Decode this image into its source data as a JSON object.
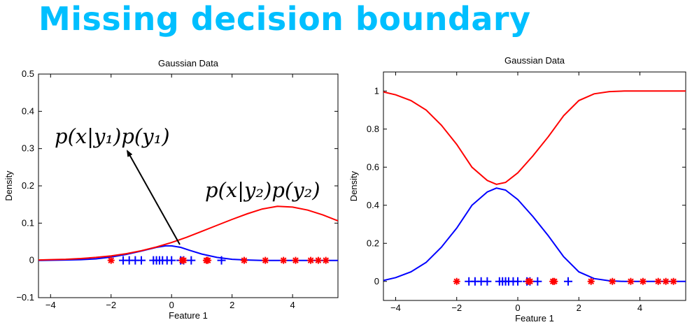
{
  "slide": {
    "title": "Missing decision boundary"
  },
  "annotations": {
    "class1": "p(x|y₁)p(y₁)",
    "class2": "p(x|y₂)p(y₂)"
  },
  "colors": {
    "title": "#00bfff",
    "class1_blue": "#0000ff",
    "class2_red": "#ff0000"
  },
  "chart_data": [
    {
      "type": "line",
      "title": "Gaussian Data",
      "xlabel": "Feature 1",
      "ylabel": "Density",
      "xlim": [
        -4.4,
        5.5
      ],
      "ylim": [
        -0.1,
        0.5
      ],
      "xticks": [
        -4,
        -2,
        0,
        2,
        4
      ],
      "yticks": [
        -0.1,
        0,
        0.1,
        0.2,
        0.3,
        0.4,
        0.5
      ],
      "xtick_labels": [
        "−4",
        "−2",
        "0",
        "2",
        "4"
      ],
      "ytick_labels": [
        "−0.1",
        "0",
        "0.1",
        "0.2",
        "0.3",
        "0.4",
        "0.5"
      ],
      "series": [
        {
          "color": "#0000ff",
          "x": [
            -4.4,
            -3.5,
            -3,
            -2.5,
            -2,
            -1.5,
            -1,
            -0.5,
            -0.2,
            0,
            0.3,
            0.6,
            1,
            1.5,
            2,
            2.5,
            3,
            3.5,
            4,
            4.5,
            5,
            5.5
          ],
          "y": [
            0,
            0.001,
            0.002,
            0.004,
            0.009,
            0.016,
            0.025,
            0.035,
            0.039,
            0.039,
            0.035,
            0.027,
            0.017,
            0.008,
            0.003,
            0.001,
            0,
            0,
            0,
            0,
            0,
            0
          ]
        },
        {
          "color": "#ff0000",
          "x": [
            -4.4,
            -4,
            -3.5,
            -3,
            -2.5,
            -2,
            -1.5,
            -1,
            -0.5,
            0,
            0.5,
            1,
            1.5,
            2,
            2.5,
            3,
            3.5,
            4,
            4.5,
            5,
            5.5
          ],
          "y": [
            0.001,
            0.002,
            0.003,
            0.005,
            0.008,
            0.012,
            0.018,
            0.026,
            0.036,
            0.048,
            0.062,
            0.078,
            0.094,
            0.11,
            0.125,
            0.138,
            0.145,
            0.143,
            0.135,
            0.122,
            0.106
          ]
        }
      ],
      "points": [
        {
          "marker": "plus",
          "color": "#0000ff",
          "y": 0,
          "x": [
            -1.6,
            -1.4,
            -1.2,
            -1.0,
            -0.6,
            -0.5,
            -0.4,
            -0.3,
            -0.15,
            0.0,
            0.3,
            0.4,
            0.65,
            1.65
          ]
        },
        {
          "marker": "star",
          "color": "#ff0000",
          "y": 0,
          "x": [
            -2.0,
            0.35,
            0.4,
            1.15,
            1.2,
            2.4,
            3.1,
            3.7,
            4.1,
            4.6,
            4.85,
            5.1
          ]
        }
      ]
    },
    {
      "type": "line",
      "title": "Gaussian Data",
      "xlabel": "Feature 1",
      "ylabel": "Density",
      "xlim": [
        -4.4,
        5.5
      ],
      "ylim": [
        -0.1,
        1.1
      ],
      "xticks": [
        -4,
        -2,
        0,
        2,
        4
      ],
      "yticks": [
        0,
        0.2,
        0.4,
        0.6,
        0.8,
        1
      ],
      "xtick_labels": [
        "−4",
        "−2",
        "0",
        "2",
        "4"
      ],
      "ytick_labels": [
        "0",
        "0.2",
        "0.4",
        "0.6",
        "0.8",
        "1"
      ],
      "series": [
        {
          "color": "#ff0000",
          "x": [
            -4.4,
            -4,
            -3.5,
            -3,
            -2.5,
            -2,
            -1.5,
            -1,
            -0.7,
            -0.4,
            0,
            0.5,
            1,
            1.5,
            2,
            2.5,
            3,
            3.5,
            4,
            4.5,
            5,
            5.5
          ],
          "y": [
            0.995,
            0.98,
            0.95,
            0.9,
            0.82,
            0.72,
            0.6,
            0.53,
            0.51,
            0.52,
            0.57,
            0.66,
            0.76,
            0.87,
            0.95,
            0.985,
            0.997,
            1.0,
            1.0,
            1.0,
            1.0,
            1.0
          ]
        },
        {
          "color": "#0000ff",
          "x": [
            -4.4,
            -4,
            -3.5,
            -3,
            -2.5,
            -2,
            -1.5,
            -1,
            -0.7,
            -0.4,
            0,
            0.5,
            1,
            1.5,
            2,
            2.5,
            3,
            3.5,
            4,
            4.5,
            5,
            5.5
          ],
          "y": [
            0.005,
            0.02,
            0.05,
            0.1,
            0.18,
            0.28,
            0.4,
            0.47,
            0.49,
            0.48,
            0.43,
            0.34,
            0.24,
            0.13,
            0.05,
            0.015,
            0.003,
            0,
            0,
            0,
            0,
            0
          ]
        }
      ],
      "points": [
        {
          "marker": "plus",
          "color": "#0000ff",
          "y": 0,
          "x": [
            -1.6,
            -1.4,
            -1.2,
            -1.0,
            -0.6,
            -0.5,
            -0.4,
            -0.3,
            -0.15,
            0.0,
            0.3,
            0.4,
            0.65,
            1.65
          ]
        },
        {
          "marker": "star",
          "color": "#ff0000",
          "y": 0,
          "x": [
            -2.0,
            0.35,
            0.4,
            1.15,
            1.2,
            2.4,
            3.1,
            3.7,
            4.1,
            4.6,
            4.85,
            5.1
          ]
        }
      ]
    }
  ]
}
